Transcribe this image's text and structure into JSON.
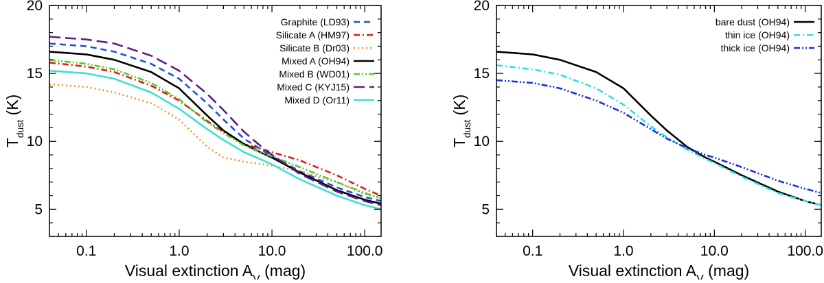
{
  "chart_data": [
    {
      "type": "line",
      "ylabel": "T",
      "ylabel_sub": "dust",
      "ylabel_unit": " (K)",
      "xlabel": "Visual extinction A",
      "xlabel_sub": "V",
      "xlabel_unit": " (mag)",
      "xscale": "log",
      "xlim": [
        0.04,
        150
      ],
      "ylim": [
        3,
        20
      ],
      "x_ticks": [
        0.1,
        1.0,
        10.0,
        100.0
      ],
      "x_tick_labels": [
        "0.1",
        "1.0",
        "10.0",
        "100.0"
      ],
      "y_ticks": [
        5,
        10,
        15,
        20
      ],
      "y_tick_labels": [
        "5",
        "10",
        "15",
        "20"
      ],
      "legend_position": "top-right",
      "series": [
        {
          "name": "Graphite (LD93)",
          "color": "#1f4fe0",
          "dash": "dashed",
          "x": [
            0.04,
            0.1,
            0.2,
            0.5,
            1.0,
            2.0,
            3.0,
            5.0,
            8.0,
            10.0,
            20.0,
            50.0,
            100.0,
            150.0
          ],
          "y": [
            17.2,
            17.0,
            16.6,
            15.7,
            14.6,
            12.8,
            11.6,
            10.2,
            9.3,
            8.9,
            7.8,
            6.6,
            5.9,
            5.6
          ]
        },
        {
          "name": "Silicate A (HM97)",
          "color": "#e01a1a",
          "dash": "dashdot",
          "x": [
            0.04,
            0.1,
            0.2,
            0.5,
            1.0,
            2.0,
            3.0,
            5.0,
            8.0,
            10.0,
            20.0,
            50.0,
            100.0,
            150.0
          ],
          "y": [
            15.8,
            15.5,
            15.1,
            14.1,
            13.0,
            11.5,
            10.7,
            9.8,
            9.4,
            9.2,
            8.6,
            7.5,
            6.5,
            6.0
          ]
        },
        {
          "name": "Silicate B (Dr03)",
          "color": "#f0922a",
          "dash": "dotted",
          "x": [
            0.04,
            0.1,
            0.2,
            0.5,
            1.0,
            2.0,
            3.0,
            5.0,
            8.0,
            10.0,
            20.0,
            50.0,
            100.0,
            150.0
          ],
          "y": [
            14.2,
            14.0,
            13.6,
            12.8,
            11.6,
            9.6,
            8.8,
            8.5,
            8.3,
            8.2,
            7.8,
            7.0,
            6.1,
            5.8
          ]
        },
        {
          "name": "Mixed A (OH94)",
          "color": "#000000",
          "dash": "solid",
          "x": [
            0.04,
            0.1,
            0.2,
            0.5,
            1.0,
            2.0,
            3.0,
            5.0,
            8.0,
            10.0,
            20.0,
            50.0,
            100.0,
            150.0
          ],
          "y": [
            16.6,
            16.4,
            16.0,
            15.1,
            13.9,
            11.9,
            10.8,
            9.8,
            9.1,
            8.8,
            7.7,
            6.4,
            5.7,
            5.4
          ]
        },
        {
          "name": "Mixed B (WD01)",
          "color": "#55cc22",
          "dash": "dashdotdot",
          "x": [
            0.04,
            0.1,
            0.2,
            0.5,
            1.0,
            2.0,
            3.0,
            5.0,
            8.0,
            10.0,
            20.0,
            50.0,
            100.0,
            150.0
          ],
          "y": [
            16.0,
            15.7,
            15.3,
            14.3,
            13.1,
            11.4,
            10.6,
            9.7,
            9.1,
            8.9,
            8.1,
            7.0,
            6.2,
            5.8
          ]
        },
        {
          "name": "Mixed C (KYJ15)",
          "color": "#5a1e8c",
          "dash": "longdash",
          "x": [
            0.04,
            0.1,
            0.2,
            0.5,
            1.0,
            2.0,
            3.0,
            5.0,
            8.0,
            10.0,
            20.0,
            50.0,
            100.0,
            150.0
          ],
          "y": [
            17.7,
            17.5,
            17.2,
            16.3,
            15.2,
            13.5,
            12.3,
            10.7,
            9.5,
            9.0,
            7.6,
            6.3,
            5.6,
            5.3
          ]
        },
        {
          "name": "Mixed D (Or11)",
          "color": "#3fe0d0",
          "dash": "solid",
          "x": [
            0.04,
            0.1,
            0.2,
            0.5,
            1.0,
            2.0,
            3.0,
            5.0,
            8.0,
            10.0,
            20.0,
            50.0,
            100.0,
            150.0
          ],
          "y": [
            15.2,
            15.0,
            14.6,
            13.6,
            12.4,
            10.9,
            10.1,
            9.2,
            8.6,
            8.3,
            7.2,
            6.0,
            5.3,
            5.0
          ]
        }
      ]
    },
    {
      "type": "line",
      "ylabel": "T",
      "ylabel_sub": "dust",
      "ylabel_unit": " (K)",
      "xlabel": "Visual extinction A",
      "xlabel_sub": "V",
      "xlabel_unit": " (mag)",
      "xscale": "log",
      "xlim": [
        0.04,
        150
      ],
      "ylim": [
        3,
        20
      ],
      "x_ticks": [
        0.1,
        1.0,
        10.0,
        100.0
      ],
      "x_tick_labels": [
        "0.1",
        "1.0",
        "10.0",
        "100.0"
      ],
      "y_ticks": [
        5,
        10,
        15,
        20
      ],
      "y_tick_labels": [
        "5",
        "10",
        "15",
        "20"
      ],
      "legend_position": "top-right",
      "series": [
        {
          "name": "bare dust (OH94)",
          "color": "#000000",
          "dash": "solid",
          "x": [
            0.04,
            0.1,
            0.2,
            0.5,
            1.0,
            2.0,
            3.0,
            5.0,
            8.0,
            10.0,
            20.0,
            50.0,
            100.0,
            150.0
          ],
          "y": [
            16.6,
            16.4,
            16.0,
            15.1,
            13.9,
            11.9,
            10.8,
            9.6,
            8.8,
            8.5,
            7.5,
            6.3,
            5.6,
            5.3
          ]
        },
        {
          "name": "thin ice (OH94)",
          "color": "#2ee0e0",
          "dash": "dashdot",
          "x": [
            0.04,
            0.1,
            0.2,
            0.5,
            1.0,
            2.0,
            3.0,
            5.0,
            8.0,
            10.0,
            20.0,
            50.0,
            100.0,
            150.0
          ],
          "y": [
            15.6,
            15.3,
            14.9,
            13.9,
            12.7,
            11.1,
            10.3,
            9.4,
            8.7,
            8.4,
            7.4,
            6.2,
            5.6,
            5.3
          ]
        },
        {
          "name": "thick ice (OH94)",
          "color": "#1a2fe0",
          "dash": "dashdotdot",
          "x": [
            0.04,
            0.1,
            0.2,
            0.5,
            1.0,
            2.0,
            3.0,
            5.0,
            8.0,
            10.0,
            20.0,
            50.0,
            100.0,
            150.0
          ],
          "y": [
            14.5,
            14.3,
            13.9,
            13.0,
            12.1,
            10.9,
            10.2,
            9.5,
            9.0,
            8.8,
            8.1,
            7.1,
            6.5,
            6.2
          ]
        }
      ]
    }
  ]
}
